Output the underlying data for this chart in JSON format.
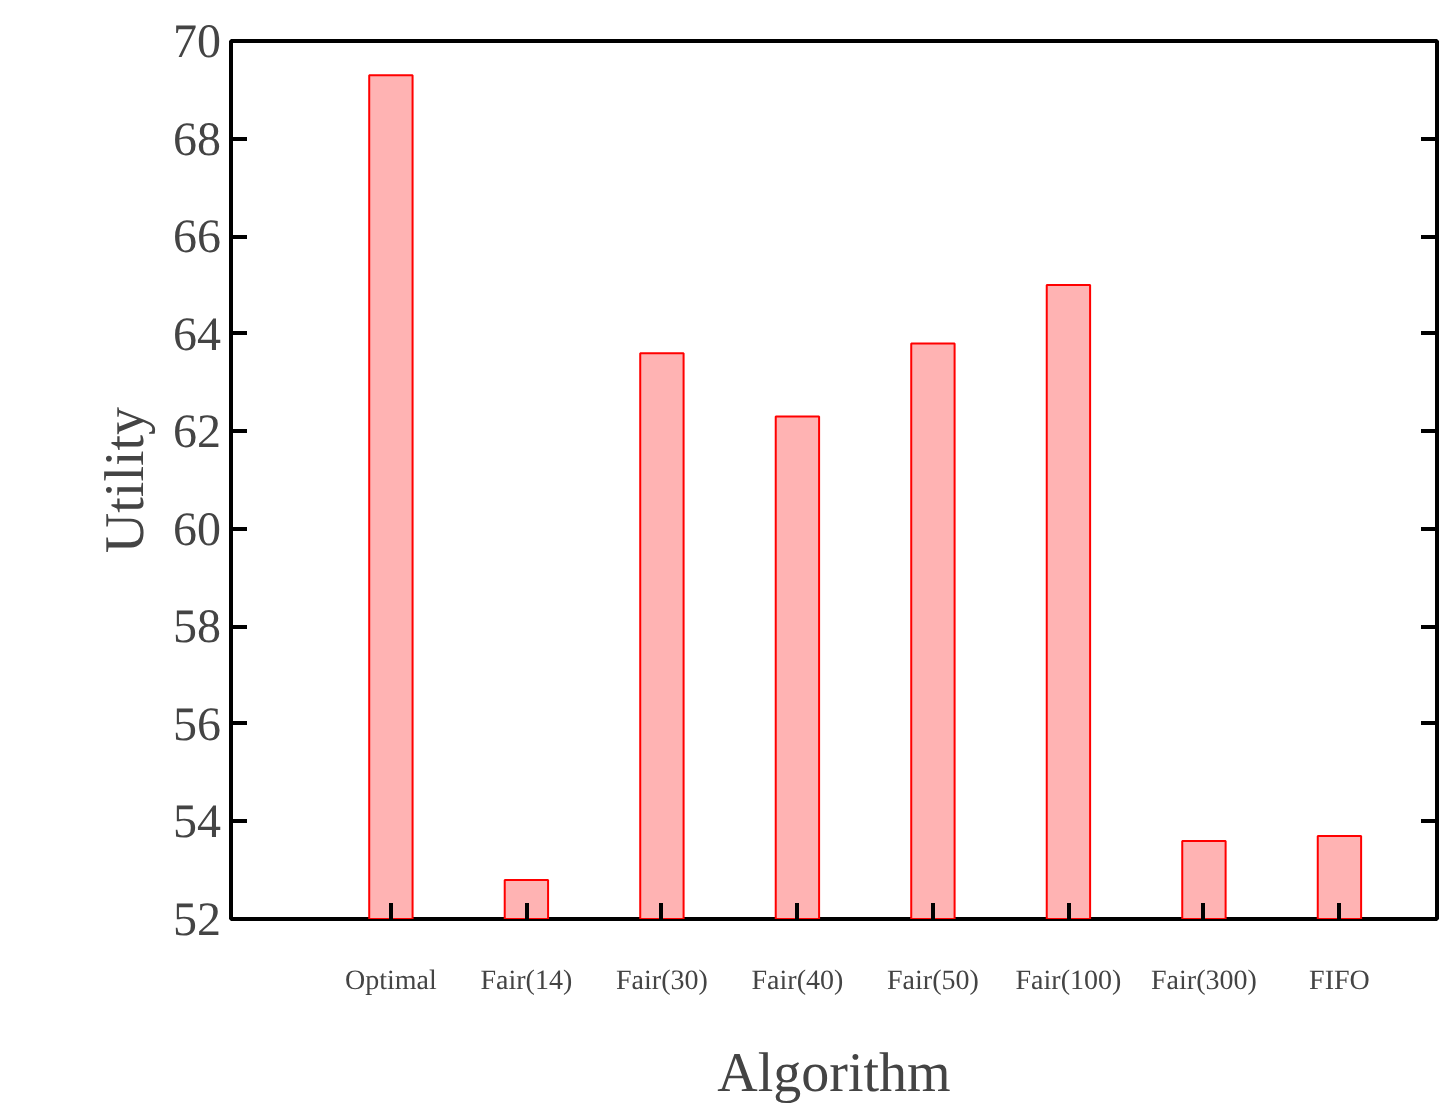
{
  "chart_data": {
    "type": "bar",
    "xlabel": "Algorithm",
    "ylabel": "Utility",
    "categories": [
      "Optimal",
      "Fair(14)",
      "Fair(30)",
      "Fair(40)",
      "Fair(50)",
      "Fair(100)",
      "Fair(300)",
      "FIFO"
    ],
    "values": [
      69.3,
      52.8,
      63.6,
      62.3,
      63.8,
      65.0,
      53.6,
      53.7
    ],
    "color": "#ffb3b3",
    "ylim": [
      52,
      70
    ],
    "yticks": [
      52,
      54,
      56,
      58,
      60,
      62,
      64,
      66,
      68,
      70
    ],
    "grid": false
  }
}
